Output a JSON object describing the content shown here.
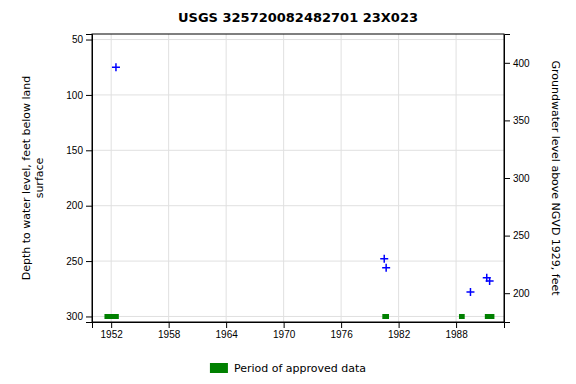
{
  "chart_data": {
    "type": "scatter",
    "title": "USGS 325720082482701 23X023",
    "ylabel": "Depth to water level, feet below land\n surface",
    "y2label": "Groundwater level above NGVD 1929, feet",
    "xlim": [
      1950,
      1993
    ],
    "ylim": [
      305,
      45
    ],
    "y2lim": [
      175,
      425
    ],
    "xticks": [
      1952,
      1958,
      1964,
      1970,
      1976,
      1982,
      1988
    ],
    "yticks": [
      50,
      100,
      150,
      200,
      250,
      300
    ],
    "y2ticks": [
      200,
      250,
      300,
      350,
      400
    ],
    "grid": true,
    "series": [
      {
        "type": "scatter",
        "marker": "plus",
        "color": "#0000ff",
        "x": [
          1952.5,
          1980.5,
          1980.7,
          1989.5,
          1991.2,
          1991.5
        ],
        "values": [
          75,
          248,
          256,
          278,
          265,
          268
        ]
      },
      {
        "type": "period",
        "name": "Period of approved data",
        "color": "#008000",
        "starts": [
          1951.3,
          1980.3,
          1988.3,
          1991.0
        ],
        "ends": [
          1952.8,
          1981.0,
          1988.9,
          1992.0
        ]
      }
    ]
  }
}
